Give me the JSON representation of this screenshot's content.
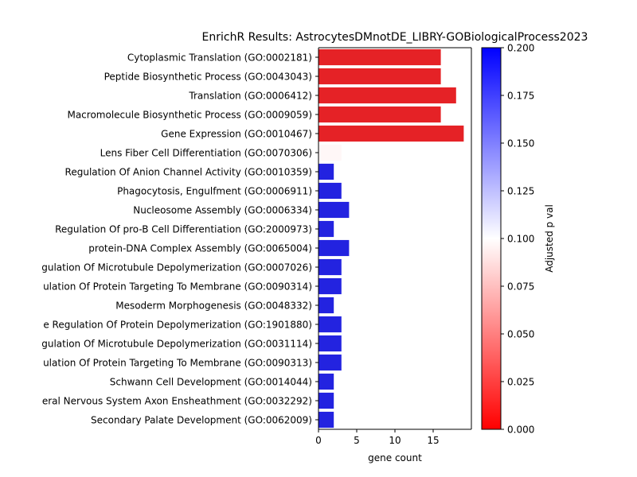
{
  "chart_data": {
    "type": "bar",
    "orientation": "horizontal",
    "title": "EnrichR Results: AstrocytesDMnotDE_LIBRY-GOBiologicalProcess2023",
    "xlabel": "gene count",
    "ylabel": "",
    "xlim": [
      0,
      20
    ],
    "xticks": [
      "0",
      "5",
      "10",
      "15"
    ],
    "categories": [
      "Cytoplasmic Translation (GO:0002181)",
      "Peptide Biosynthetic Process (GO:0043043)",
      "Translation (GO:0006412)",
      "Macromolecule Biosynthetic Process (GO:0009059)",
      "Gene Expression (GO:0010467)",
      "Lens Fiber Cell Differentiation (GO:0070306)",
      "Regulation Of Anion Channel Activity (GO:0010359)",
      "Phagocytosis, Engulfment (GO:0006911)",
      "Nucleosome Assembly (GO:0006334)",
      "Regulation Of pro-B Cell Differentiation (GO:2000973)",
      "protein-DNA Complex Assembly (GO:0065004)",
      "gulation Of Microtubule Depolymerization (GO:0007026)",
      "ulation Of Protein Targeting To Membrane (GO:0090314)",
      "Mesoderm Morphogenesis (GO:0048332)",
      "e Regulation Of Protein Depolymerization (GO:1901880)",
      "gulation Of Microtubule Depolymerization (GO:0031114)",
      "ulation Of Protein Targeting To Membrane (GO:0090313)",
      "Schwann Cell Development (GO:0014044)",
      "eral Nervous System Axon Ensheathment (GO:0032292)",
      "Secondary Palate Development (GO:0062009)"
    ],
    "values": [
      16,
      16,
      18,
      16,
      19,
      3,
      2,
      3,
      4,
      2,
      4,
      3,
      3,
      2,
      3,
      3,
      3,
      2,
      2,
      2
    ],
    "adjusted_p": [
      0.01,
      0.01,
      0.01,
      0.01,
      0.01,
      0.097,
      0.19,
      0.19,
      0.19,
      0.19,
      0.19,
      0.19,
      0.19,
      0.19,
      0.19,
      0.19,
      0.19,
      0.19,
      0.19,
      0.19
    ],
    "colorbar": {
      "label": "Adjusted p val",
      "range": [
        0,
        0.2
      ],
      "ticks": [
        "0.000",
        "0.025",
        "0.050",
        "0.075",
        "0.100",
        "0.125",
        "0.150",
        "0.175",
        "0.200"
      ],
      "colormap": "bwr_r",
      "colors": {
        "low": "#ff0000",
        "mid": "#ffffff",
        "high": "#0000ff"
      }
    },
    "grid": false,
    "bar_colors": {
      "red": "#e52226",
      "blue": "#2323e0"
    }
  }
}
